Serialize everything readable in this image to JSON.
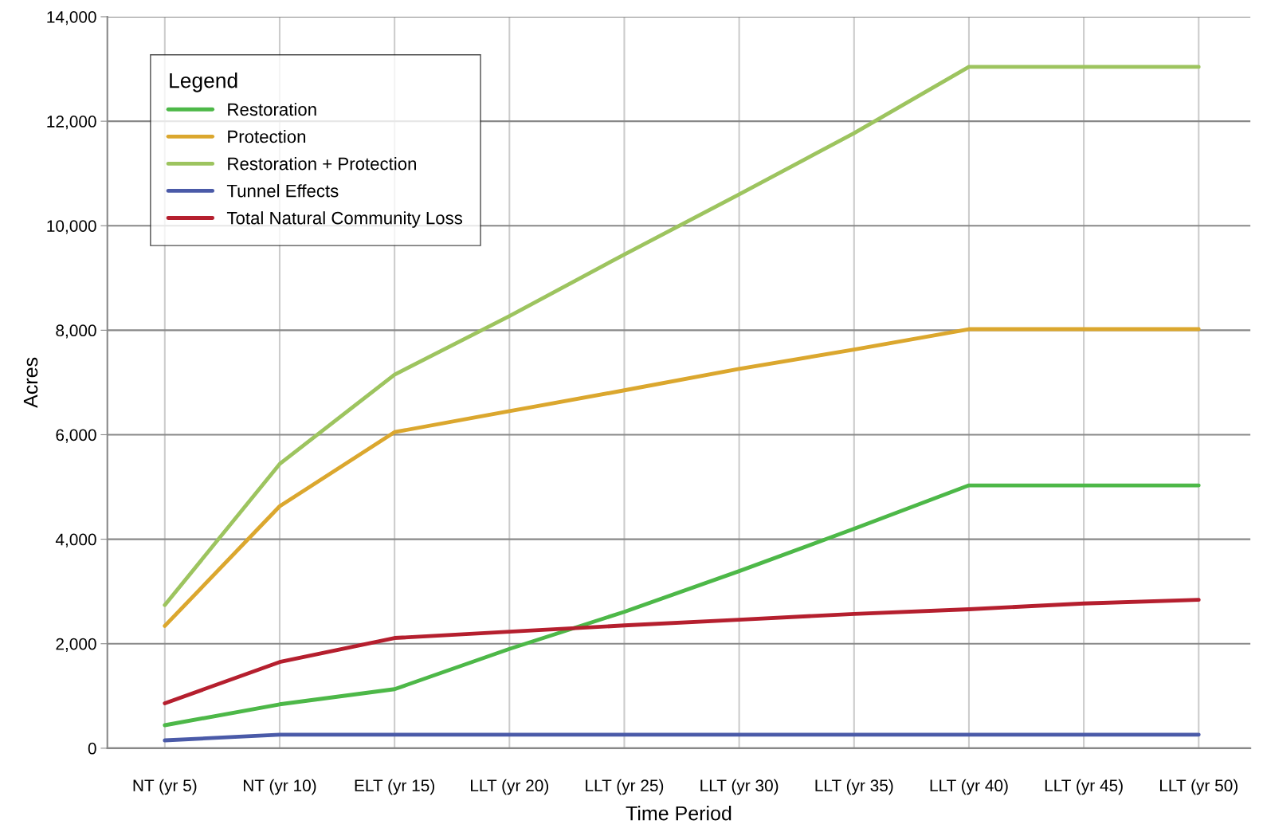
{
  "chart_data": {
    "type": "line",
    "xlabel": "Time Period",
    "ylabel": "Acres",
    "legend_title": "Legend",
    "legend": "top left",
    "grid": true,
    "categories": [
      "NT (yr 5)",
      "NT (yr 10)",
      "ELT (yr 15)",
      "LLT (yr 20)",
      "LLT (yr 25)",
      "LLT (yr 30)",
      "LLT (yr 35)",
      "LLT (yr 40)",
      "LLT (yr 45)",
      "LLT (yr 50)"
    ],
    "ylim": [
      0,
      14000
    ],
    "yticks": [
      0,
      {
        "value": 2000,
        "label": "2,000"
      },
      {
        "value": 4000,
        "label": "4,000"
      },
      {
        "value": 6000,
        "label": "6,000"
      },
      {
        "value": 8000,
        "label": "8,000"
      },
      {
        "value": 10000,
        "label": "10,000"
      },
      {
        "value": 12000,
        "label": "12,000"
      },
      {
        "value": 14000,
        "label": "14,000"
      }
    ],
    "series": [
      {
        "name": "Restoration",
        "color": "#4db848",
        "values": [
          440,
          840,
          1130,
          1900,
          2610,
          3390,
          4200,
          5030,
          5030,
          5030
        ]
      },
      {
        "name": "Protection",
        "color": "#dba72e",
        "values": [
          2340,
          4630,
          6050,
          6450,
          6850,
          7260,
          7630,
          8020,
          8020,
          8020
        ]
      },
      {
        "name": "Restoration + Protection",
        "color": "#9dc45f",
        "values": [
          2740,
          5440,
          7150,
          8270,
          9450,
          10600,
          11770,
          13040,
          13040,
          13040
        ]
      },
      {
        "name": "Tunnel Effects",
        "color": "#4a5aa8",
        "values": [
          150,
          260,
          260,
          260,
          260,
          260,
          260,
          260,
          260,
          260
        ]
      },
      {
        "name": "Total Natural Community Loss",
        "color": "#b51f2e",
        "values": [
          860,
          1650,
          2110,
          2230,
          2350,
          2460,
          2570,
          2660,
          2770,
          2840
        ]
      }
    ]
  }
}
